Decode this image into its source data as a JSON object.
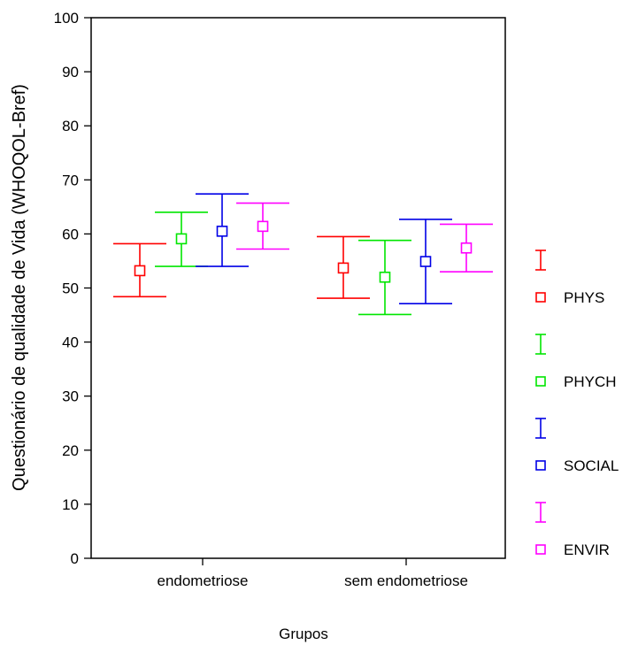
{
  "chart_data": {
    "type": "errorbar",
    "xlabel": "Grupos",
    "ylabel": "Questionário de qualidade de Vida (WHOQOL-Bref)",
    "ylim": [
      0,
      100
    ],
    "yticks": [
      0,
      10,
      20,
      30,
      40,
      50,
      60,
      70,
      80,
      90,
      100
    ],
    "categories": [
      "endometriose",
      "sem endometriose"
    ],
    "grid": false,
    "legend_position": "right",
    "series": [
      {
        "name": "PHYS",
        "color": "#ff0000",
        "points": [
          {
            "mean": 53.2,
            "low": 48.4,
            "high": 58.2
          },
          {
            "mean": 53.7,
            "low": 48.1,
            "high": 59.5
          }
        ]
      },
      {
        "name": "PHYCH",
        "color": "#00e600",
        "points": [
          {
            "mean": 59.1,
            "low": 54.0,
            "high": 64.0
          },
          {
            "mean": 52.0,
            "low": 45.1,
            "high": 58.8
          }
        ]
      },
      {
        "name": "SOCIAL",
        "color": "#0000e6",
        "points": [
          {
            "mean": 60.5,
            "low": 54.0,
            "high": 67.4
          },
          {
            "mean": 54.9,
            "low": 47.1,
            "high": 62.7
          }
        ]
      },
      {
        "name": "ENVIR",
        "color": "#ff00ff",
        "points": [
          {
            "mean": 61.4,
            "low": 57.2,
            "high": 65.7
          },
          {
            "mean": 57.4,
            "low": 53.0,
            "high": 61.8
          }
        ]
      }
    ]
  }
}
